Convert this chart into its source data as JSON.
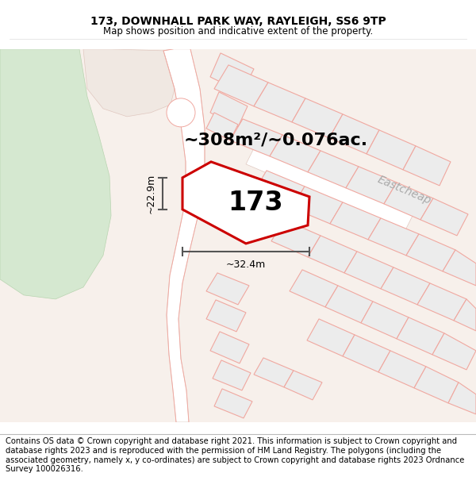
{
  "title": "173, DOWNHALL PARK WAY, RAYLEIGH, SS6 9TP",
  "subtitle": "Map shows position and indicative extent of the property.",
  "area_label": "~308m²/~0.076ac.",
  "property_number": "173",
  "dim_width": "~32.4m",
  "dim_height": "~22.9m",
  "street_label": "Eastcheap",
  "footer_text": "Contains OS data © Crown copyright and database right 2021. This information is subject to Crown copyright and database rights 2023 and is reproduced with the permission of HM Land Registry. The polygons (including the associated geometry, namely x, y co-ordinates) are subject to Crown copyright and database rights 2023 Ordnance Survey 100026316.",
  "map_bg": "#f7f0eb",
  "road_white": "#ffffff",
  "building_fill": "#ebebeb",
  "building_edge": "#f5a0a0",
  "building_edge2": "#e8c8c8",
  "green_fill": "#d8e8d0",
  "pink_area": "#f5e8e0",
  "plot_fill": "#ffffff",
  "plot_outline": "#cc0000",
  "dim_color": "#555555",
  "street_color": "#aaaaaa",
  "title_fontsize": 10,
  "subtitle_fontsize": 8.5,
  "area_fontsize": 16,
  "number_fontsize": 24,
  "dim_fontsize": 9,
  "footer_fontsize": 7.2
}
